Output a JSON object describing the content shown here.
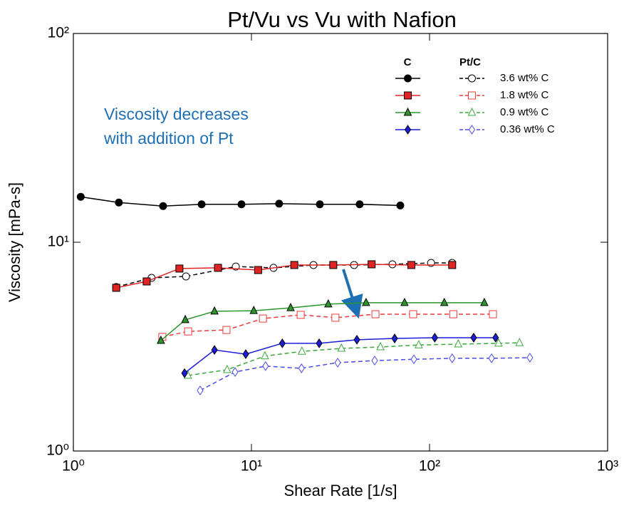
{
  "chart_data": {
    "type": "line",
    "title": "Pt/Vu vs Vu with Nafion",
    "x_label": "Shear Rate [1/s]",
    "y_label": "Viscosity [mPa-s]",
    "xscale": "log",
    "yscale": "log",
    "xlim": [
      1,
      1000
    ],
    "ylim": [
      1,
      100
    ],
    "xticks": [
      {
        "value": 1,
        "label": "10⁰"
      },
      {
        "value": 10,
        "label": "10¹"
      },
      {
        "value": 100,
        "label": "10²"
      },
      {
        "value": 1000,
        "label": "10³"
      }
    ],
    "yticks": [
      {
        "value": 1,
        "label": "10⁰"
      },
      {
        "value": 10,
        "label": "10¹"
      },
      {
        "value": 100,
        "label": "10²"
      }
    ],
    "legend_headers": [
      "C",
      "Pt/C"
    ],
    "legend_position": "upper right",
    "annotation": {
      "lines": [
        "Viscosity decreases",
        "with addition of Pt"
      ],
      "color": "#1f6fb4"
    },
    "series": [
      {
        "color": "#000000",
        "style": "solid",
        "marker": "circle",
        "filled": true,
        "x": [
          1.1,
          1.8,
          3.19,
          5.25,
          8.79,
          14.3,
          24.2,
          40.5,
          68.5
        ],
        "values": [
          16.5,
          15.5,
          14.9,
          15.2,
          15.2,
          15.3,
          15.2,
          15.2,
          15.0
        ]
      },
      {
        "name": "3.6 wt% C",
        "color": "#000000",
        "style": "dashed",
        "marker": "circle",
        "filled": false,
        "x": [
          1.74,
          2.75,
          4.29,
          8.17,
          13.3,
          22.3,
          37.7,
          61.9,
          102,
          134
        ],
        "values": [
          6.1,
          6.75,
          6.86,
          7.65,
          7.54,
          7.78,
          7.78,
          7.84,
          7.96,
          7.96
        ]
      },
      {
        "color": "#e02424",
        "style": "solid",
        "marker": "square",
        "filled": true,
        "x": [
          1.74,
          2.58,
          3.94,
          6.49,
          10.9,
          17.4,
          28.8,
          47.3,
          79,
          134
        ],
        "values": [
          6.05,
          6.49,
          7.48,
          7.54,
          7.36,
          7.78,
          7.78,
          7.84,
          7.78,
          7.78
        ]
      },
      {
        "name": "1.8 wt% C",
        "color": "#e83a3a",
        "style": "dashed",
        "marker": "square",
        "filled": false,
        "x": [
          3.16,
          4.41,
          7.24,
          11.6,
          18.9,
          29.6,
          49.7,
          80.9,
          136,
          227
        ],
        "values": [
          3.52,
          3.74,
          3.8,
          4.31,
          4.49,
          4.35,
          4.52,
          4.52,
          4.52,
          4.52
        ]
      },
      {
        "color": "#2a962a",
        "style": "solid",
        "marker": "triangle",
        "filled": true,
        "x": [
          3.1,
          4.25,
          6.2,
          10.3,
          16.6,
          27,
          44,
          72.4,
          121,
          203
        ],
        "values": [
          3.38,
          4.25,
          4.67,
          4.7,
          4.85,
          5.05,
          5.13,
          5.13,
          5.13,
          5.13
        ]
      },
      {
        "name": "0.9 wt% C",
        "color": "#3aa83a",
        "style": "dashed",
        "marker": "triangle",
        "filled": false,
        "x": [
          4.4,
          7.3,
          11.9,
          19.2,
          32,
          53,
          87,
          145,
          244,
          320
        ],
        "values": [
          2.3,
          2.45,
          2.85,
          3.0,
          3.1,
          3.15,
          3.22,
          3.25,
          3.28,
          3.3
        ]
      },
      {
        "color": "#1c1cd8",
        "style": "solid",
        "marker": "diamond",
        "filled": true,
        "x": [
          4.21,
          6.2,
          9.29,
          14.9,
          24,
          39.1,
          63.7,
          107,
          177,
          235
        ],
        "values": [
          2.36,
          3.05,
          2.91,
          3.28,
          3.28,
          3.41,
          3.46,
          3.49,
          3.49,
          3.49
        ]
      },
      {
        "name": "0.36 wt% C",
        "color": "#4a4ae8",
        "style": "dashed",
        "marker": "diamond",
        "filled": false,
        "x": [
          5.15,
          8.09,
          12,
          19.1,
          30.5,
          49.2,
          81.7,
          134,
          223,
          366
        ],
        "values": [
          1.95,
          2.39,
          2.55,
          2.49,
          2.65,
          2.71,
          2.75,
          2.78,
          2.78,
          2.8
        ]
      }
    ]
  }
}
